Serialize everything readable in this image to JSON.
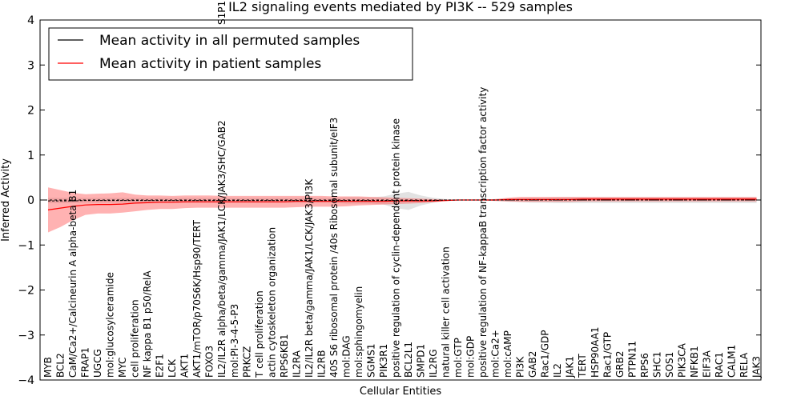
{
  "chart_data": {
    "type": "line",
    "title": "IL2 signaling events mediated by PI3K -- 529 samples",
    "xlabel": "Cellular Entities",
    "ylabel": "Inferred Activity",
    "ylim": [
      -4,
      4
    ],
    "yticks": [
      "−4",
      "−3",
      "−2",
      "−1",
      "0",
      "1",
      "2",
      "3",
      "4"
    ],
    "grid": false,
    "legend_position": "top-left",
    "categories": [
      "MYB",
      "BCL2",
      "CaM/Ca2+/Calcineurin A alpha-beta B1",
      "FRAP1",
      "UGCG",
      "mol:glucosylceramide",
      "MYC",
      "cell proliferation",
      "NF kappa B1 p50/RelA",
      "E2F1",
      "LCK",
      "AKT1",
      "AKT1/mTOR/p70S6K/Hsp90/TERT",
      "FOXO3",
      "IL2/IL2R alpha/beta/gamma/JAK1/LCK/JAK3/SHC/GAB2",
      "mol:PI-3-4-5-P3",
      "PRKCZ",
      "T cell proliferation",
      "actin cytoskeleton organization",
      "RPS6KB1",
      "IL2RA",
      "IL2/IL2R beta/gamma/JAK1/LCK/JAK3/PI3K",
      "IL2RB",
      "40S S6 ribosomal protein /40s Ribosomal subunit/eIF3",
      "mol:DAG",
      "mol:sphingomyelin",
      "SGMS1",
      "PIK3R1",
      "positive regulation of cyclin-dependent protein kinase",
      "BCL2L1",
      "SMPD1",
      "IL2RG",
      "natural killer cell activation",
      "mol:GTP",
      "mol:GDP",
      "positive regulation of NF-kappaB transcription factor activity",
      "mol:Ca2+",
      "mol:cAMP",
      "PI3K",
      "GAB2",
      "Rac1/GDP",
      "IL2",
      "JAK1",
      "TERT",
      "HSP90AA1",
      "Rac1/GTP",
      "GRB2",
      "PTPN11",
      "RPS6",
      "SHC1",
      "SOS1",
      "PIK3CA",
      "NFKB1",
      "EIF3A",
      "RAC1",
      "CALM1",
      "RELA",
      "JAK3"
    ],
    "overflow_label": "S1P1",
    "series": [
      {
        "name": "Mean activity in all permuted samples",
        "color": "#000000",
        "values": [
          -0.02,
          -0.02,
          -0.02,
          -0.01,
          -0.01,
          -0.01,
          -0.01,
          -0.01,
          -0.01,
          -0.01,
          -0.01,
          -0.01,
          -0.01,
          -0.01,
          -0.01,
          -0.01,
          -0.01,
          -0.01,
          -0.01,
          -0.01,
          -0.01,
          -0.01,
          -0.01,
          -0.01,
          -0.01,
          -0.01,
          -0.01,
          -0.01,
          -0.01,
          -0.01,
          -0.01,
          -0.01,
          0.0,
          0.0,
          0.0,
          0.0,
          0.0,
          0.0,
          0.0,
          0.0,
          0.0,
          0.0,
          0.0,
          0.0,
          0.0,
          0.0,
          0.0,
          0.0,
          0.0,
          0.0,
          0.0,
          0.0,
          0.0,
          0.0,
          0.0,
          0.0,
          0.0,
          0.0
        ],
        "band_lower": [
          -0.07,
          -0.07,
          -0.07,
          -0.06,
          -0.06,
          -0.06,
          -0.06,
          -0.06,
          -0.06,
          -0.06,
          -0.06,
          -0.06,
          -0.06,
          -0.06,
          -0.06,
          -0.06,
          -0.06,
          -0.06,
          -0.06,
          -0.06,
          -0.06,
          -0.06,
          -0.06,
          -0.06,
          -0.08,
          -0.08,
          -0.08,
          -0.1,
          -0.18,
          -0.22,
          -0.12,
          -0.06,
          -0.02,
          -0.01,
          -0.01,
          -0.01,
          -0.02,
          -0.04,
          -0.05,
          -0.06,
          -0.06,
          -0.07,
          -0.07,
          -0.07,
          -0.07,
          -0.07,
          -0.07,
          -0.07,
          -0.07,
          -0.07,
          -0.07,
          -0.07,
          -0.07,
          -0.07,
          -0.07,
          -0.07,
          -0.07,
          -0.07
        ],
        "band_upper": [
          0.05,
          0.05,
          0.05,
          0.05,
          0.05,
          0.05,
          0.05,
          0.05,
          0.05,
          0.05,
          0.05,
          0.05,
          0.05,
          0.05,
          0.05,
          0.05,
          0.05,
          0.05,
          0.05,
          0.05,
          0.05,
          0.05,
          0.05,
          0.05,
          0.06,
          0.06,
          0.06,
          0.08,
          0.14,
          0.18,
          0.1,
          0.05,
          0.02,
          0.01,
          0.01,
          0.01,
          0.02,
          0.03,
          0.04,
          0.05,
          0.05,
          0.06,
          0.06,
          0.06,
          0.06,
          0.06,
          0.06,
          0.06,
          0.06,
          0.06,
          0.06,
          0.06,
          0.06,
          0.06,
          0.06,
          0.06,
          0.06,
          0.06
        ]
      },
      {
        "name": "Mean activity in patient samples",
        "color": "#ff0000",
        "values": [
          -0.22,
          -0.18,
          -0.14,
          -0.11,
          -0.1,
          -0.1,
          -0.09,
          -0.07,
          -0.06,
          -0.05,
          -0.05,
          -0.04,
          -0.04,
          -0.04,
          -0.04,
          -0.04,
          -0.04,
          -0.04,
          -0.04,
          -0.04,
          -0.03,
          -0.03,
          -0.03,
          -0.03,
          -0.03,
          -0.03,
          -0.03,
          -0.03,
          -0.02,
          -0.02,
          -0.02,
          -0.02,
          -0.01,
          0.0,
          0.0,
          0.0,
          0.0,
          0.01,
          0.01,
          0.01,
          0.01,
          0.01,
          0.01,
          0.02,
          0.02,
          0.02,
          0.02,
          0.02,
          0.02,
          0.02,
          0.02,
          0.02,
          0.02,
          0.02,
          0.02,
          0.02,
          0.02,
          0.02
        ],
        "band_lower": [
          -0.72,
          -0.6,
          -0.45,
          -0.33,
          -0.3,
          -0.3,
          -0.28,
          -0.25,
          -0.22,
          -0.2,
          -0.2,
          -0.18,
          -0.17,
          -0.17,
          -0.17,
          -0.17,
          -0.17,
          -0.17,
          -0.17,
          -0.17,
          -0.16,
          -0.15,
          -0.15,
          -0.15,
          -0.14,
          -0.12,
          -0.11,
          -0.1,
          -0.09,
          -0.08,
          -0.07,
          -0.05,
          -0.02,
          -0.01,
          -0.01,
          -0.01,
          -0.02,
          -0.03,
          -0.04,
          -0.04,
          -0.04,
          -0.04,
          -0.04,
          -0.03,
          -0.03,
          -0.03,
          -0.03,
          -0.03,
          -0.03,
          -0.03,
          -0.03,
          -0.03,
          -0.03,
          -0.03,
          -0.03,
          -0.03,
          -0.03,
          -0.03
        ],
        "band_upper": [
          0.28,
          0.22,
          0.16,
          0.13,
          0.14,
          0.15,
          0.17,
          0.12,
          0.1,
          0.1,
          0.09,
          0.1,
          0.1,
          0.1,
          0.09,
          0.09,
          0.09,
          0.09,
          0.09,
          0.09,
          0.09,
          0.09,
          0.09,
          0.08,
          0.08,
          0.08,
          0.07,
          0.06,
          0.05,
          0.04,
          0.03,
          0.02,
          0.01,
          0.01,
          0.01,
          0.01,
          0.02,
          0.05,
          0.07,
          0.07,
          0.07,
          0.07,
          0.07,
          0.07,
          0.07,
          0.07,
          0.07,
          0.07,
          0.07,
          0.07,
          0.07,
          0.07,
          0.07,
          0.07,
          0.07,
          0.07,
          0.07,
          0.07
        ]
      }
    ]
  }
}
